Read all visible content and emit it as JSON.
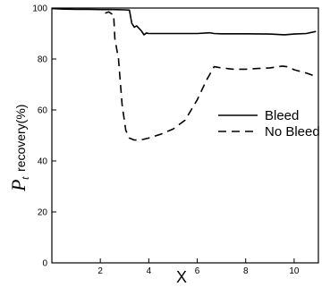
{
  "chart_data": {
    "type": "line",
    "title": "",
    "xlabel": "X",
    "ylabel": {
      "symbol": "P",
      "subscript": "t",
      "text": "recovery(%)"
    },
    "xlim": [
      0,
      11
    ],
    "ylim": [
      0,
      100
    ],
    "x_ticks": [
      2,
      4,
      6,
      8,
      10
    ],
    "y_ticks": [
      0,
      20,
      40,
      60,
      80,
      100
    ],
    "grid": false,
    "legend_position": "right-middle",
    "series": [
      {
        "name": "Bleed",
        "style": "solid",
        "color": "#000000",
        "points": [
          [
            0.0,
            99.8
          ],
          [
            0.5,
            99.6
          ],
          [
            1.0,
            99.5
          ],
          [
            1.5,
            99.5
          ],
          [
            2.0,
            99.4
          ],
          [
            2.5,
            99.4
          ],
          [
            3.0,
            99.3
          ],
          [
            3.2,
            99.2
          ],
          [
            3.3,
            94.0
          ],
          [
            3.4,
            92.5
          ],
          [
            3.5,
            93.0
          ],
          [
            3.6,
            92.0
          ],
          [
            3.7,
            91.0
          ],
          [
            3.8,
            89.5
          ],
          [
            3.9,
            90.2
          ],
          [
            4.0,
            90.0
          ],
          [
            5.0,
            90.0
          ],
          [
            6.0,
            90.0
          ],
          [
            6.5,
            90.3
          ],
          [
            6.7,
            90.0
          ],
          [
            7.0,
            89.9
          ],
          [
            8.0,
            89.9
          ],
          [
            9.0,
            89.8
          ],
          [
            9.6,
            89.5
          ],
          [
            10.0,
            89.8
          ],
          [
            10.5,
            90.0
          ],
          [
            10.9,
            90.8
          ]
        ]
      },
      {
        "name": "No  Bleed",
        "style": "dashed",
        "color": "#000000",
        "points": [
          [
            2.2,
            98.0
          ],
          [
            2.35,
            98.5
          ],
          [
            2.5,
            97.5
          ],
          [
            2.55,
            97.5
          ],
          [
            2.6,
            88.0
          ],
          [
            2.75,
            80.0
          ],
          [
            2.9,
            62.0
          ],
          [
            3.05,
            52.0
          ],
          [
            3.2,
            49.0
          ],
          [
            3.4,
            48.2
          ],
          [
            3.7,
            48.3
          ],
          [
            4.0,
            49.0
          ],
          [
            4.5,
            50.5
          ],
          [
            5.0,
            52.5
          ],
          [
            5.5,
            56.0
          ],
          [
            6.0,
            64.0
          ],
          [
            6.4,
            72.0
          ],
          [
            6.7,
            77.0
          ],
          [
            7.0,
            76.5
          ],
          [
            7.5,
            76.0
          ],
          [
            8.0,
            76.0
          ],
          [
            8.5,
            76.3
          ],
          [
            9.0,
            76.5
          ],
          [
            9.5,
            77.2
          ],
          [
            9.7,
            77.0
          ],
          [
            10.0,
            75.8
          ],
          [
            10.5,
            74.5
          ],
          [
            10.8,
            73.5
          ]
        ]
      }
    ]
  }
}
